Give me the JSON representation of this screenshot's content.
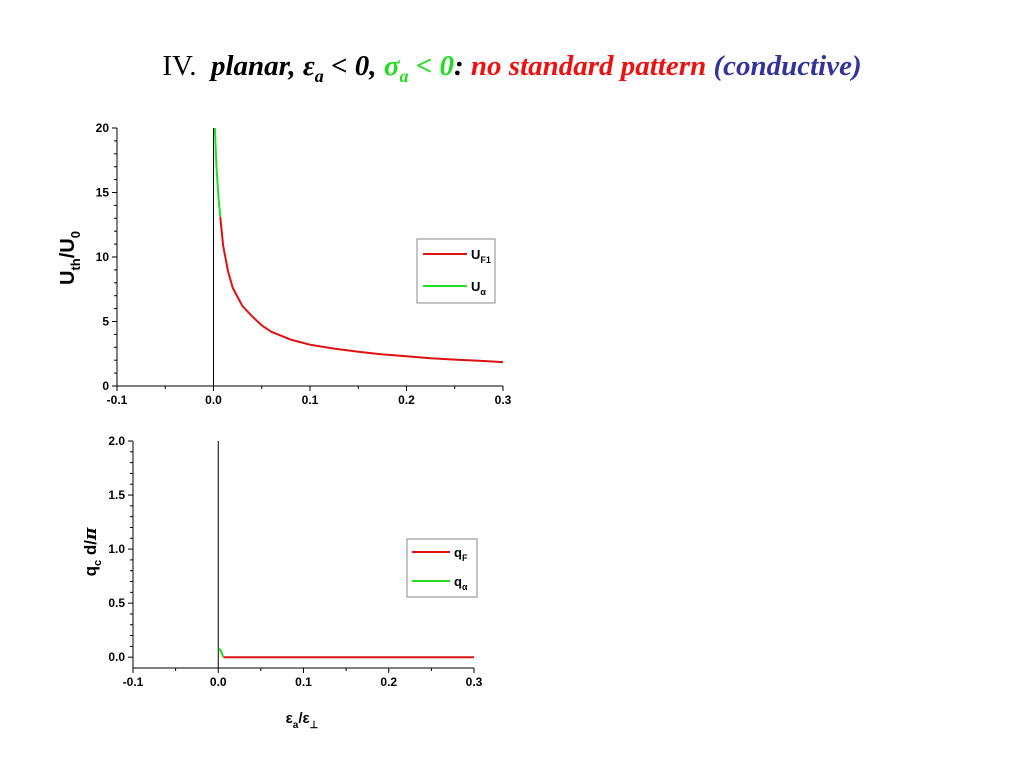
{
  "title": {
    "numeral": "IV.",
    "part1": "planar, ",
    "eps": "ε",
    "eps_sub": "a",
    "part2": " < 0, ",
    "sigma": "σ",
    "sigma_sub": "a",
    "part3": " < 0",
    "colon": ": ",
    "red_text": "no standard pattern",
    "blue_text": "(conductive)",
    "colors": {
      "black": "#000000",
      "green": "#22dd22",
      "red": "#ee1111",
      "blue": "#333399"
    }
  },
  "chart_data": [
    {
      "type": "line",
      "title": "",
      "xlim": [
        -0.1,
        0.3
      ],
      "ylim": [
        0,
        20
      ],
      "xticks": [
        "-0.1",
        "0.0",
        "0.1",
        "0.2",
        "0.3"
      ],
      "yticks": [
        "0",
        "5",
        "10",
        "15",
        "20"
      ],
      "ylabel": {
        "main": "U",
        "sub1": "th",
        "slash": "/U",
        "sub2": "0"
      },
      "xlabel": "",
      "vertical_line_x": 0.0,
      "legend": {
        "placement": "right",
        "items": [
          {
            "main": "U",
            "sub": "F1",
            "color": "#dd1111"
          },
          {
            "main": "U",
            "sub": "α",
            "color": "#22dd22"
          }
        ]
      },
      "series": [
        {
          "name": "U_F1",
          "color": "#dd1111",
          "x": [
            0.007,
            0.01,
            0.015,
            0.02,
            0.03,
            0.04,
            0.05,
            0.06,
            0.08,
            0.1,
            0.125,
            0.15,
            0.175,
            0.2,
            0.225,
            0.25,
            0.275,
            0.3
          ],
          "y": [
            13.1,
            10.9,
            8.9,
            7.6,
            6.2,
            5.4,
            4.7,
            4.2,
            3.6,
            3.2,
            2.9,
            2.65,
            2.45,
            2.3,
            2.15,
            2.05,
            1.95,
            1.85
          ]
        },
        {
          "name": "U_α",
          "color": "#22dd22",
          "x": [
            0.0015,
            0.002,
            0.003,
            0.004,
            0.005,
            0.006,
            0.007
          ],
          "y": [
            20,
            18.9,
            17.1,
            15.9,
            14.8,
            13.9,
            13.1
          ]
        }
      ]
    },
    {
      "type": "line",
      "title": "",
      "xlim": [
        -0.1,
        0.3
      ],
      "ylim": [
        -0.1,
        2.0
      ],
      "xticks": [
        "-0.1",
        "0.0",
        "0.1",
        "0.2",
        "0.3"
      ],
      "yticks": [
        "0.0",
        "0.5",
        "1.0",
        "1.5",
        "2.0"
      ],
      "ylabel": {
        "main": "q",
        "sub1": "c",
        "rest": " d/",
        "pi": "π"
      },
      "xlabel": {
        "e1": "ε",
        "sub1": "a",
        "slash": "/ε",
        "sub2": "⊥"
      },
      "vertical_line_x": 0.0,
      "legend": {
        "placement": "right",
        "items": [
          {
            "main": "q",
            "sub": "F",
            "color": "#dd1111"
          },
          {
            "main": "q",
            "sub": "α",
            "color": "#22dd22"
          }
        ]
      },
      "series": [
        {
          "name": "q_F",
          "color": "#dd1111",
          "x": [
            0.006,
            0.05,
            0.1,
            0.15,
            0.2,
            0.25,
            0.3
          ],
          "y": [
            0,
            0,
            0,
            0,
            0,
            0,
            0
          ]
        },
        {
          "name": "q_α",
          "color": "#22dd22",
          "x": [
            0.001,
            0.003,
            0.005,
            0.006
          ],
          "y": [
            0.08,
            0.06,
            0.02,
            0.0
          ]
        }
      ]
    }
  ]
}
